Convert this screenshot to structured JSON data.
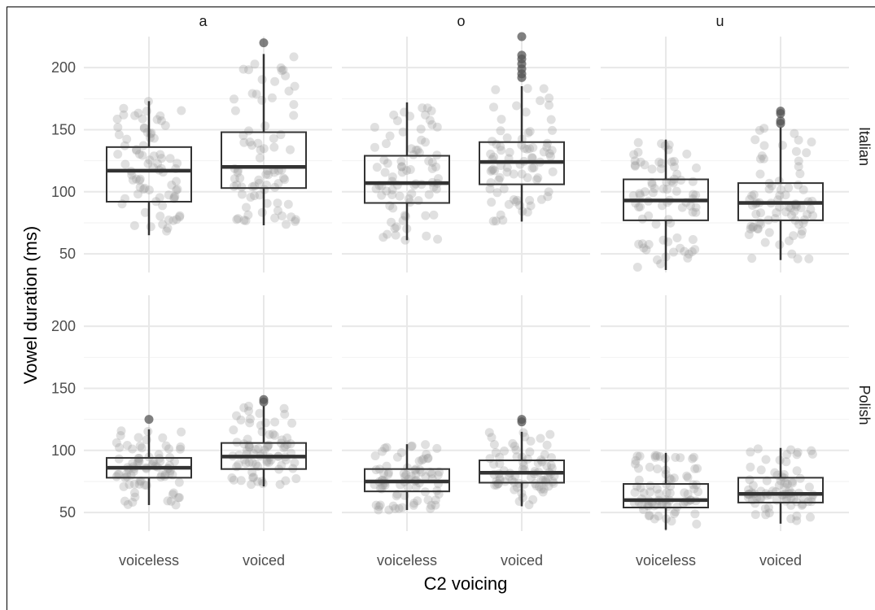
{
  "chart_data": {
    "type": "boxplot",
    "xlabel": "C2 voicing",
    "ylabel": "Vowel duration (ms)",
    "facet_columns": [
      "a",
      "o",
      "u"
    ],
    "facet_rows": [
      "Italian",
      "Polish"
    ],
    "categories": [
      "voiceless",
      "voiced"
    ],
    "ylim": [
      35,
      225
    ],
    "yticks": [
      50,
      100,
      150,
      200
    ],
    "grid": true,
    "point_color": "#999999",
    "outlier_color": "#555555",
    "box_color": "#333333",
    "panels": [
      {
        "row": "Italian",
        "col": "a",
        "boxes": [
          {
            "category": "voiceless",
            "min": 65,
            "q1": 92,
            "median": 117,
            "q3": 136,
            "max": 173,
            "outliers": []
          },
          {
            "category": "voiced",
            "min": 73,
            "q1": 103,
            "median": 120,
            "q3": 148,
            "max": 211,
            "outliers": [
              220
            ]
          }
        ]
      },
      {
        "row": "Italian",
        "col": "o",
        "boxes": [
          {
            "category": "voiceless",
            "min": 61,
            "q1": 91,
            "median": 107,
            "q3": 129,
            "max": 172,
            "outliers": []
          },
          {
            "category": "voiced",
            "min": 76,
            "q1": 106,
            "median": 124,
            "q3": 140,
            "max": 185,
            "outliers": [
              192,
              195,
              199,
              203,
              207,
              210,
              225
            ]
          }
        ]
      },
      {
        "row": "Italian",
        "col": "u",
        "boxes": [
          {
            "category": "voiceless",
            "min": 37,
            "q1": 77,
            "median": 93,
            "q3": 110,
            "max": 142,
            "outliers": []
          },
          {
            "category": "voiced",
            "min": 45,
            "q1": 77,
            "median": 91,
            "q3": 107,
            "max": 152,
            "outliers": [
              155,
              157,
              163,
              165
            ]
          }
        ]
      },
      {
        "row": "Polish",
        "col": "a",
        "boxes": [
          {
            "category": "voiceless",
            "min": 56,
            "q1": 78,
            "median": 86,
            "q3": 94,
            "max": 117,
            "outliers": [
              125
            ]
          },
          {
            "category": "voiced",
            "min": 71,
            "q1": 85,
            "median": 95,
            "q3": 106,
            "max": 136,
            "outliers": [
              139,
              141
            ]
          }
        ]
      },
      {
        "row": "Polish",
        "col": "o",
        "boxes": [
          {
            "category": "voiceless",
            "min": 52,
            "q1": 67,
            "median": 75,
            "q3": 85,
            "max": 105,
            "outliers": []
          },
          {
            "category": "voiced",
            "min": 55,
            "q1": 74,
            "median": 82,
            "q3": 92,
            "max": 115,
            "outliers": [
              123,
              125
            ]
          }
        ]
      },
      {
        "row": "Polish",
        "col": "u",
        "boxes": [
          {
            "category": "voiceless",
            "min": 36,
            "q1": 54,
            "median": 60,
            "q3": 73,
            "max": 98,
            "outliers": []
          },
          {
            "category": "voiced",
            "min": 41,
            "q1": 58,
            "median": 65,
            "q3": 78,
            "max": 102,
            "outliers": []
          }
        ]
      }
    ]
  }
}
